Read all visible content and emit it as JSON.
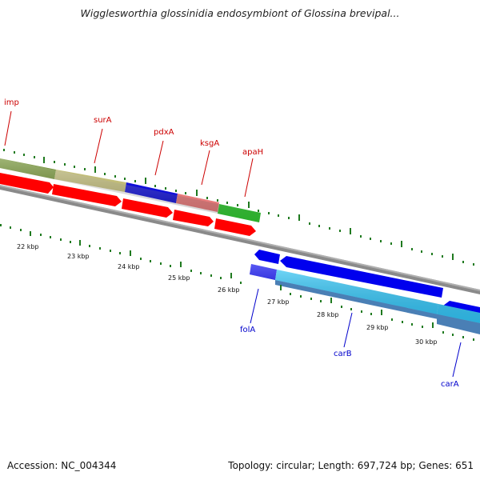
{
  "title": "Wigglesworthia glossinidia endosymbiont of Glossina brevipal...",
  "footer": {
    "accession": "Accession: NC_004344",
    "topology": "Topology: circular; Length: 697,724 bp; Genes: 651"
  },
  "colors": {
    "forward_label": "#cc0000",
    "reverse_label": "#0000cc",
    "backbone": "#8a8a8a",
    "tick": "#1f7a1f"
  },
  "gene_labels": {
    "forward": [
      "imp",
      "surA",
      "pdxA",
      "ksgA",
      "apaH"
    ],
    "reverse": [
      "folA",
      "carB",
      "carA"
    ]
  },
  "kbp_labels": [
    "22 kbp",
    "23 kbp",
    "24 kbp",
    "25 kbp",
    "26 kbp",
    "27 kbp",
    "28 kbp",
    "29 kbp",
    "30 kbp"
  ]
}
